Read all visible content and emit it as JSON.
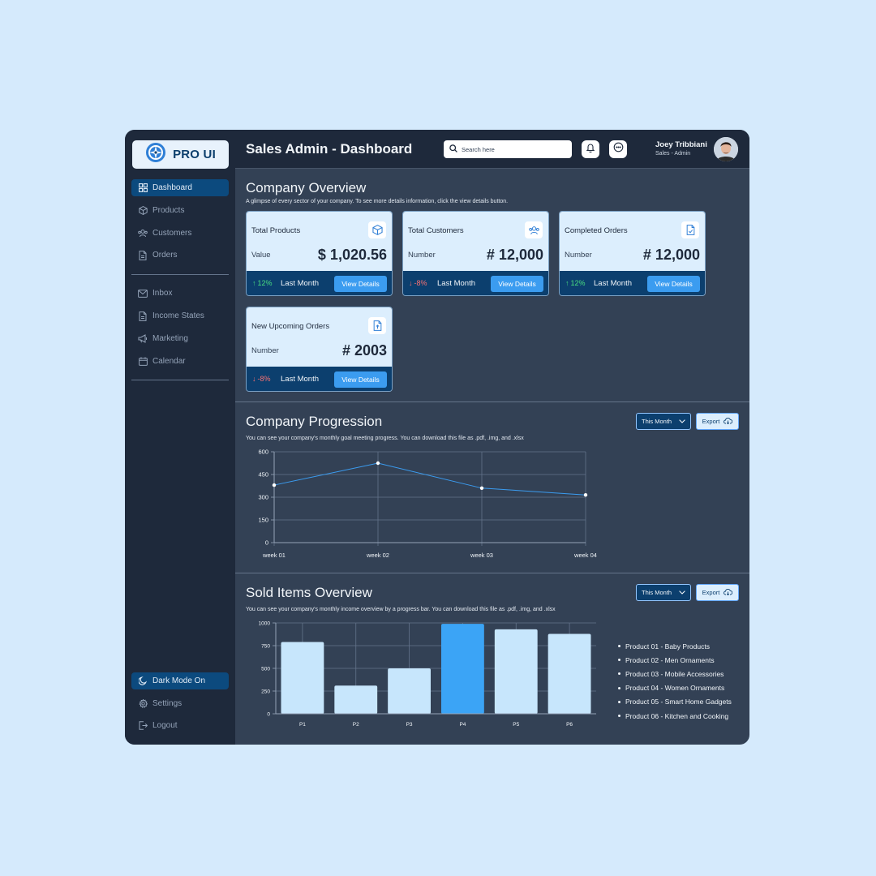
{
  "brand": {
    "name": "PRO UI"
  },
  "header": {
    "title": "Sales Admin - Dashboard",
    "search_placeholder": "Search here",
    "user_name": "Joey Tribbiani",
    "user_role": "Sales - Admin"
  },
  "sidebar": {
    "items": [
      {
        "label": "Dashboard",
        "icon": "grid-icon",
        "active": true
      },
      {
        "label": "Products",
        "icon": "cube-icon"
      },
      {
        "label": "Customers",
        "icon": "users-icon"
      },
      {
        "label": "Orders",
        "icon": "document-icon"
      },
      {
        "label": "Inbox",
        "icon": "mail-icon"
      },
      {
        "label": "Income States",
        "icon": "document-icon"
      },
      {
        "label": "Marketing",
        "icon": "megaphone-icon"
      },
      {
        "label": "Calendar",
        "icon": "calendar-icon"
      }
    ],
    "bottom": [
      {
        "label": "Dark Mode On",
        "icon": "moon-icon",
        "active": true
      },
      {
        "label": "Settings",
        "icon": "gear-icon"
      },
      {
        "label": "Logout",
        "icon": "logout-icon"
      }
    ]
  },
  "overview": {
    "title": "Company Overview",
    "subtitle": "A glimpse of every sector of your company. To see more details information, click the view details button.",
    "cards": [
      {
        "title": "Total Products",
        "label": "Value",
        "value": "$ 1,020.56",
        "trend": "12%",
        "trend_dir": "up",
        "period": "Last Month",
        "button": "View Details",
        "icon": "cube-icon"
      },
      {
        "title": "Total Customers",
        "label": "Number",
        "value": "# 12,000",
        "trend": "-8%",
        "trend_dir": "down",
        "period": "Last Month",
        "button": "View Details",
        "icon": "users-icon"
      },
      {
        "title": "Completed Orders",
        "label": "Number",
        "value": "# 12,000",
        "trend": "12%",
        "trend_dir": "up",
        "period": "Last Month",
        "button": "View Details",
        "icon": "document-check-icon"
      },
      {
        "title": "New Upcoming Orders",
        "label": "Number",
        "value": "# 2003",
        "trend": "-8%",
        "trend_dir": "down",
        "period": "Last Month",
        "button": "View Details",
        "icon": "document-upload-icon"
      }
    ]
  },
  "progression": {
    "title": "Company Progression",
    "subtitle": "You can see your company's monthly goal meeting progress. You can download this file as .pdf, .img, and .xlsx",
    "dropdown": "This Month",
    "export": "Export"
  },
  "sold": {
    "title": "Sold Items Overview",
    "subtitle": "You can see your company's monthly income overview by a progress bar. You can download this file as .pdf, .img, and .xlsx",
    "dropdown": "This Month",
    "export": "Export",
    "legend": [
      "Product 01 - Baby Products",
      "Product 02 - Men Ornaments",
      "Product 03 - Mobile Accessories",
      "Product 04 - Women Ornaments",
      "Product 05 - Smart Home Gadgets",
      "Product 06 - Kitchen and Cooking"
    ]
  },
  "chart_data": [
    {
      "type": "line",
      "categories": [
        "week 01",
        "week 02",
        "week 03",
        "week 04"
      ],
      "values": [
        380,
        525,
        360,
        315
      ],
      "yticks": [
        0,
        150,
        300,
        450,
        600
      ],
      "ylim": [
        0,
        600
      ],
      "grid": true,
      "color": "#3b9cf0"
    },
    {
      "type": "bar",
      "categories": [
        "P1",
        "P2",
        "P3",
        "P4",
        "P5",
        "P6"
      ],
      "values": [
        790,
        310,
        500,
        990,
        930,
        880
      ],
      "yticks": [
        0,
        250,
        500,
        750,
        1000
      ],
      "ylim": [
        0,
        1000
      ],
      "grid": true,
      "bar_color": "#c7e6fc",
      "highlight_color": "#3ba4f6",
      "highlight_index": 3
    }
  ]
}
